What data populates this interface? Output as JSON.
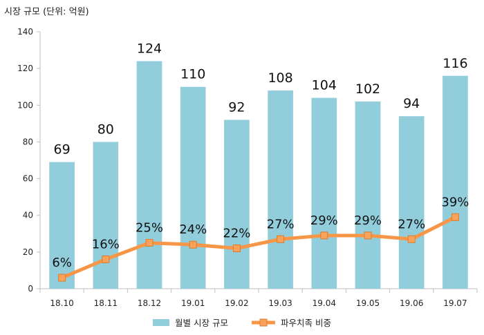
{
  "chart_data": {
    "type": "bar",
    "unit_label": "시장 규모 (단위: 억원)",
    "categories": [
      "18.10",
      "18.11",
      "18.12",
      "19.01",
      "19.02",
      "19.03",
      "19.04",
      "19.05",
      "19.06",
      "19.07"
    ],
    "series": [
      {
        "name": "월별 시장 규모",
        "type": "bar",
        "values": [
          69,
          80,
          124,
          110,
          92,
          108,
          104,
          102,
          94,
          116
        ],
        "labels": [
          "69",
          "80",
          "124",
          "110",
          "92",
          "108",
          "104",
          "102",
          "94",
          "116"
        ],
        "color": "#92cddc"
      },
      {
        "name": "파우치족 비중",
        "type": "line",
        "values": [
          6,
          16,
          25,
          24,
          22,
          27,
          29,
          29,
          27,
          39
        ],
        "labels": [
          "6%",
          "16%",
          "25%",
          "24%",
          "22%",
          "27%",
          "29%",
          "29%",
          "27%",
          "39%"
        ],
        "color": "#f79646"
      }
    ],
    "yticks": [
      "0",
      "20",
      "40",
      "60",
      "80",
      "100",
      "120",
      "140"
    ],
    "ylim": [
      0,
      140
    ],
    "grid": false,
    "legend_position": "bottom"
  }
}
